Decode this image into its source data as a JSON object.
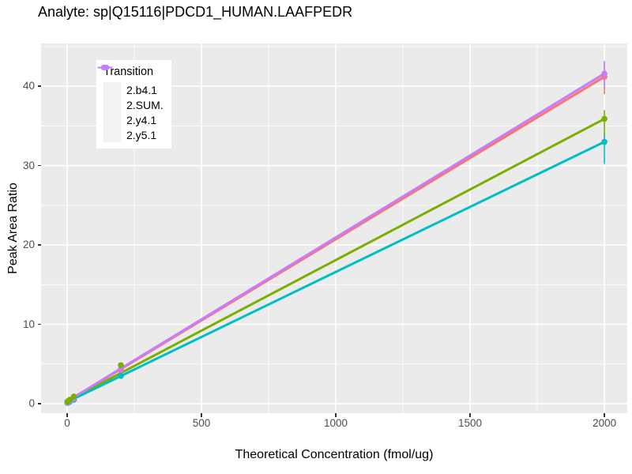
{
  "chart_data": {
    "type": "line",
    "title": "Analyte: sp|Q15116|PDCD1_HUMAN.LAAFPEDR",
    "xlabel": "Theoretical Concentration (fmol/ug)",
    "ylabel": "Peak Area Ratio",
    "legend": {
      "title": "Transition",
      "position": "top-left-inside",
      "entries": [
        "2.b4.1",
        "2.SUM.",
        "2.y4.1",
        "2.y5.1"
      ]
    },
    "axes": {
      "xlim": [
        -97,
        2085
      ],
      "ylim": [
        -1.2,
        45.4
      ],
      "x_ticks": [
        0,
        500,
        1000,
        1500,
        2000
      ],
      "x_minor_ticks": [
        250,
        750,
        1250,
        1750
      ],
      "y_ticks": [
        0,
        10,
        20,
        30,
        40
      ],
      "y_minor_ticks": [
        5,
        15,
        25,
        35,
        45
      ],
      "grid": true
    },
    "style": {
      "panel_bg": "#EBEBEB",
      "grid_major_color": "#FFFFFF",
      "grid_minor_color": "#FFFFFF",
      "tick_mark_color": "#333333",
      "tick_label_color": "#4D4D4D",
      "legend_key_bg": "#F2F2F2"
    },
    "series": [
      {
        "name": "2.b4.1",
        "color": "#F8766D",
        "line": [
          [
            0,
            0.25
          ],
          [
            2000,
            41.2
          ]
        ],
        "points": [
          [
            1,
            0.1
          ],
          [
            5,
            0.2
          ],
          [
            10,
            0.3
          ],
          [
            25,
            0.6
          ],
          [
            200,
            4.2
          ],
          [
            2000,
            41.2
          ]
        ],
        "error_bars": [
          {
            "x": 2000,
            "y": 41.2,
            "lo": 39.0,
            "hi": 42.9
          }
        ]
      },
      {
        "name": "2.SUM.",
        "color": "#7CAE00",
        "line": [
          [
            0,
            0.3
          ],
          [
            2000,
            35.9
          ]
        ],
        "points": [
          [
            1,
            0.25
          ],
          [
            5,
            0.35
          ],
          [
            10,
            0.5
          ],
          [
            25,
            0.9
          ],
          [
            200,
            4.85
          ],
          [
            2000,
            35.9
          ]
        ],
        "error_bars": [
          {
            "x": 2000,
            "y": 35.9,
            "lo": 33.9,
            "hi": 37.0
          }
        ]
      },
      {
        "name": "2.y4.1",
        "color": "#00BFC4",
        "line": [
          [
            0,
            0.2
          ],
          [
            2000,
            33.0
          ]
        ],
        "points": [
          [
            1,
            0.1
          ],
          [
            5,
            0.15
          ],
          [
            10,
            0.25
          ],
          [
            25,
            0.5
          ],
          [
            200,
            3.5
          ],
          [
            2000,
            33.0
          ]
        ],
        "error_bars": [
          {
            "x": 2000,
            "y": 33.0,
            "lo": 30.2,
            "hi": 34.1
          }
        ]
      },
      {
        "name": "2.y5.1",
        "color": "#C77CFF",
        "line": [
          [
            0,
            0.3
          ],
          [
            2000,
            41.6
          ]
        ],
        "points": [
          [
            1,
            0.15
          ],
          [
            5,
            0.25
          ],
          [
            10,
            0.35
          ],
          [
            25,
            0.65
          ],
          [
            200,
            4.35
          ],
          [
            2000,
            41.6
          ]
        ],
        "error_bars": [
          {
            "x": 2000,
            "y": 41.6,
            "lo": 39.9,
            "hi": 43.2
          }
        ]
      }
    ],
    "point_draw_order": [
      "2.b4.1",
      "2.y4.1",
      "2.y5.1",
      "2.SUM."
    ]
  }
}
